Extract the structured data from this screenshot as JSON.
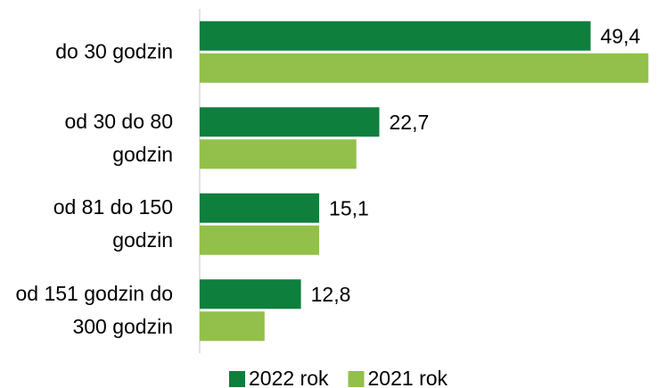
{
  "chart_data": {
    "type": "hbar",
    "categories": [
      "do 30 godzin",
      "od 30 do 80 godzin",
      "od 81 do 150 godzin",
      "od 151 godzin do 300 godzin"
    ],
    "series": [
      {
        "name": "2022 rok",
        "color": "#0f7f3d",
        "values": [
          49.4,
          22.7,
          15.1,
          12.8
        ],
        "value_labels": [
          "49,4",
          "22,7",
          "15,1",
          "12,8"
        ]
      },
      {
        "name": "2021 rok",
        "color": "#92c04a",
        "values": [
          56.7,
          19.8,
          15.1,
          8.2
        ]
      }
    ],
    "xlim": [
      0,
      57
    ],
    "legend": "bottom"
  }
}
